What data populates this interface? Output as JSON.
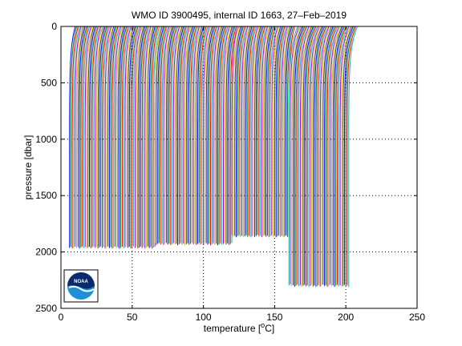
{
  "chart_data": {
    "type": "line",
    "title": "WMO ID 3900495, internal ID 1663, 27–Feb–2019",
    "xlabel": {
      "prefix": "temperature [",
      "sup": "o",
      "suffix": "C]"
    },
    "ylabel": "pressure [dbar]",
    "xlim": [
      0,
      250
    ],
    "ylim": [
      0,
      2500
    ],
    "y_reversed": true,
    "grid": true,
    "x_ticks": [
      0,
      50,
      100,
      150,
      200,
      250
    ],
    "y_ticks": [
      0,
      500,
      1000,
      1500,
      2000,
      2500
    ],
    "profile_offset": "each successive profile is shifted right by 1 °C",
    "series_colors": [
      "#0000ff",
      "#008000",
      "#ff0000",
      "#00bfbf",
      "#bf00bf",
      "#bfbf00",
      "#404040"
    ],
    "profile_groups": [
      {
        "start_temp": 6,
        "end_temp": 66,
        "max_pressure": 1960,
        "surface_temp_offset": 4,
        "deep_temp_offset": 0.0
      },
      {
        "start_temp": 66,
        "end_temp": 120,
        "max_pressure": 1930,
        "surface_temp_offset": 4,
        "deep_temp_offset": 0.0
      },
      {
        "start_temp": 120,
        "end_temp": 160,
        "max_pressure": 1860,
        "surface_temp_offset": 4,
        "deep_temp_offset": 0.0
      },
      {
        "start_temp": 160,
        "end_temp": 202,
        "max_pressure": 2300,
        "surface_temp_offset": 6,
        "deep_temp_offset": 0.0
      }
    ]
  },
  "logo": {
    "text": "NOAA"
  }
}
